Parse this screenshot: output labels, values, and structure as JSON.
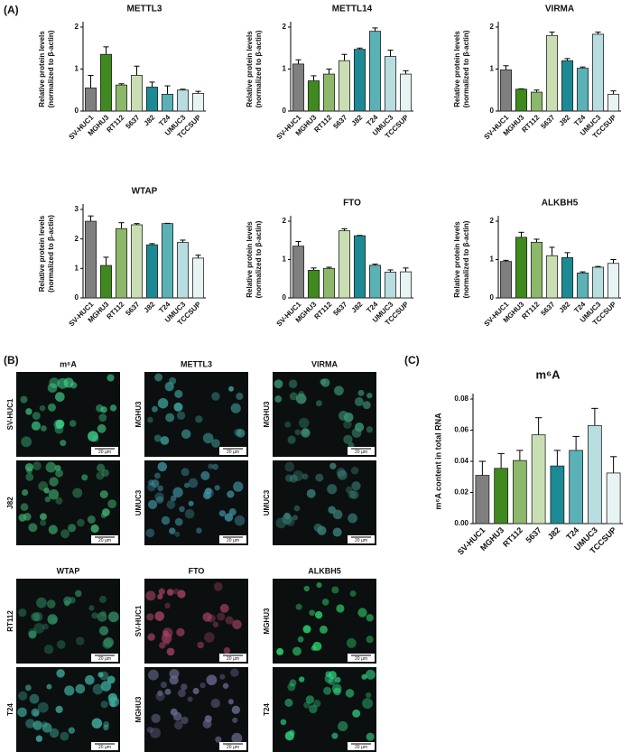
{
  "panels": [
    "(A)",
    "(B)",
    "(C)"
  ],
  "chart_data": [
    {
      "type": "bar",
      "title": "METTL3",
      "y_label": [
        "Relative protein levels",
        "(normalized to β-actin)"
      ],
      "categories": [
        "SV-HUC1",
        "MGHU3",
        "RT112",
        "5637",
        "J82",
        "T24",
        "UMUC3",
        "TCCSUP"
      ],
      "values": [
        0.55,
        1.35,
        0.62,
        0.85,
        0.57,
        0.4,
        0.5,
        0.42
      ],
      "errors": [
        0.3,
        0.18,
        0.03,
        0.22,
        0.12,
        0.2,
        0.02,
        0.05
      ],
      "colors": [
        "#7f7f7f",
        "#3f8a1e",
        "#8db86b",
        "#c9dfb3",
        "#1b8a94",
        "#5ab1b6",
        "#b8dde0",
        "#e8f4f4"
      ],
      "ylim": [
        0,
        2
      ],
      "yticks": [
        0,
        1,
        2
      ]
    },
    {
      "type": "bar",
      "title": "METTL14",
      "y_label": [
        "Relative protein levels",
        "(normalized to β-actin)"
      ],
      "categories": [
        "SV-HUC1",
        "MGHU3",
        "RT112",
        "5637",
        "J82",
        "T24",
        "UMUC3",
        "TCCSUP"
      ],
      "values": [
        1.12,
        0.72,
        0.88,
        1.2,
        1.47,
        1.9,
        1.3,
        0.88
      ],
      "errors": [
        0.1,
        0.12,
        0.12,
        0.15,
        0.03,
        0.08,
        0.15,
        0.08
      ],
      "colors": [
        "#7f7f7f",
        "#3f8a1e",
        "#8db86b",
        "#c9dfb3",
        "#1b8a94",
        "#5ab1b6",
        "#b8dde0",
        "#e8f4f4"
      ],
      "ylim": [
        0,
        2
      ],
      "yticks": [
        0,
        1,
        2
      ]
    },
    {
      "type": "bar",
      "title": "VIRMA",
      "y_label": [
        "Relative protein levels",
        "(normalized to β-actin)"
      ],
      "categories": [
        "SV-HUC1",
        "MGHU3",
        "RT112",
        "5637",
        "J82",
        "T24",
        "UMUC3",
        "TCCSUP"
      ],
      "values": [
        0.98,
        0.52,
        0.45,
        1.8,
        1.2,
        1.02,
        1.83,
        0.4
      ],
      "errors": [
        0.1,
        0.01,
        0.05,
        0.08,
        0.05,
        0.03,
        0.05,
        0.08
      ],
      "colors": [
        "#7f7f7f",
        "#3f8a1e",
        "#8db86b",
        "#c9dfb3",
        "#1b8a94",
        "#5ab1b6",
        "#b8dde0",
        "#e8f4f4"
      ],
      "ylim": [
        0,
        2
      ],
      "yticks": [
        0,
        1,
        2
      ]
    },
    {
      "type": "bar",
      "title": "WTAP",
      "y_label": [
        "Relative protein levels",
        "(normalized to β-actin)"
      ],
      "categories": [
        "SV-HUC1",
        "MGHU3",
        "RT112",
        "5637",
        "J82",
        "T24",
        "UMUC3",
        "TCCSUP"
      ],
      "values": [
        2.6,
        1.1,
        2.35,
        2.48,
        1.8,
        2.52,
        1.88,
        1.35
      ],
      "errors": [
        0.18,
        0.28,
        0.2,
        0.04,
        0.04,
        0.01,
        0.08,
        0.1
      ],
      "colors": [
        "#7f7f7f",
        "#3f8a1e",
        "#8db86b",
        "#c9dfb3",
        "#1b8a94",
        "#5ab1b6",
        "#b8dde0",
        "#e8f4f4"
      ],
      "ylim": [
        0,
        3
      ],
      "yticks": [
        0,
        1,
        2,
        3
      ]
    },
    {
      "type": "bar",
      "title": "FTO",
      "y_label": [
        "Relative protein levels",
        "(normalized to β-actin)"
      ],
      "categories": [
        "SV-HUC1",
        "MGHU3",
        "RT112",
        "5637",
        "J82",
        "T24",
        "UMUC3",
        "TCCSUP"
      ],
      "values": [
        1.35,
        0.72,
        0.77,
        1.75,
        1.62,
        0.85,
        0.67,
        0.68
      ],
      "errors": [
        0.12,
        0.06,
        0.03,
        0.05,
        0.01,
        0.03,
        0.06,
        0.1
      ],
      "colors": [
        "#7f7f7f",
        "#3f8a1e",
        "#8db86b",
        "#c9dfb3",
        "#1b8a94",
        "#5ab1b6",
        "#b8dde0",
        "#e8f4f4"
      ],
      "ylim": [
        0,
        2
      ],
      "yticks": [
        0,
        1,
        2
      ]
    },
    {
      "type": "bar",
      "title": "ALKBH5",
      "y_label": [
        "Relative protein levels",
        "(normalized to β-actin)"
      ],
      "categories": [
        "SV-HUC1",
        "MGHU3",
        "RT112",
        "5637",
        "J82",
        "T24",
        "UMUC3",
        "TCCSUP"
      ],
      "values": [
        0.95,
        1.58,
        1.45,
        1.1,
        1.05,
        0.65,
        0.8,
        0.9
      ],
      "errors": [
        0.03,
        0.13,
        0.08,
        0.22,
        0.13,
        0.03,
        0.02,
        0.1
      ],
      "colors": [
        "#7f7f7f",
        "#3f8a1e",
        "#8db86b",
        "#c9dfb3",
        "#1b8a94",
        "#5ab1b6",
        "#b8dde0",
        "#e8f4f4"
      ],
      "ylim": [
        0,
        2
      ],
      "yticks": [
        0,
        1,
        2
      ]
    },
    {
      "type": "bar",
      "title": "m⁶A",
      "y_label": [
        "m⁶A content in total RNA"
      ],
      "categories": [
        "SV-HUC1",
        "MGHU3",
        "RT112",
        "5637",
        "J82",
        "T24",
        "UMUC3",
        "TCCSUP"
      ],
      "values": [
        0.031,
        0.0355,
        0.0405,
        0.057,
        0.037,
        0.047,
        0.063,
        0.0325
      ],
      "errors": [
        0.009,
        0.0095,
        0.0065,
        0.011,
        0.01,
        0.009,
        0.011,
        0.0105
      ],
      "colors": [
        "#7f7f7f",
        "#3f8a1e",
        "#8db86b",
        "#c9dfb3",
        "#1b8a94",
        "#5ab1b6",
        "#b8dde0",
        "#e8f4f4"
      ],
      "ylim": [
        0,
        0.08
      ],
      "yticks": [
        {
          "value": 0,
          "label": "0.00"
        },
        {
          "value": 0.02,
          "label": "0.02"
        },
        {
          "value": 0.04,
          "label": "0.04"
        },
        {
          "value": 0.06,
          "label": "0.06"
        },
        {
          "value": 0.08,
          "label": "0.08"
        }
      ]
    }
  ],
  "micrographs": [
    {
      "title": "m⁶A",
      "images": [
        {
          "label": "SV-HUC1",
          "scale": "20 µm",
          "tint": "#3fd08a"
        },
        {
          "label": "J82",
          "scale": "20 µm",
          "tint": "#3fb070"
        }
      ]
    },
    {
      "title": "METTL3",
      "images": [
        {
          "label": "MGHU3",
          "scale": "20 µm",
          "tint": "#40a8a0"
        },
        {
          "label": "UMUC3",
          "scale": "20 µm",
          "tint": "#4090a0"
        }
      ]
    },
    {
      "title": "VIRMA",
      "images": [
        {
          "label": "MGHU3",
          "scale": "20 µm",
          "tint": "#3a9070"
        },
        {
          "label": "UMUC3",
          "scale": "20 µm",
          "tint": "#3a8078"
        }
      ]
    },
    {
      "title": "WTAP",
      "images": [
        {
          "label": "RT112",
          "scale": "20 µm",
          "tint": "#308a60"
        },
        {
          "label": "T24",
          "scale": "20 µm",
          "tint": "#40b0a0"
        }
      ]
    },
    {
      "title": "FTO",
      "images": [
        {
          "label": "SV-HUC1",
          "scale": "20 µm",
          "tint": "#a04060"
        },
        {
          "label": "MGHU3",
          "scale": "20 µm",
          "tint": "#6a6a90"
        }
      ]
    },
    {
      "title": "ALKBH5",
      "images": [
        {
          "label": "MGHU3",
          "scale": "20 µm",
          "tint": "#30e070"
        },
        {
          "label": "T24",
          "scale": "20 µm",
          "tint": "#30d080"
        }
      ]
    }
  ]
}
